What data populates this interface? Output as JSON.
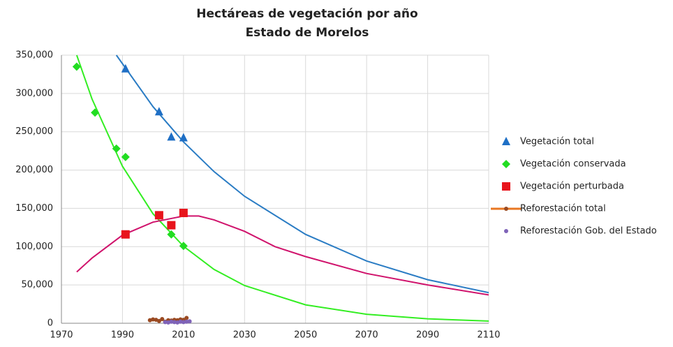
{
  "chart_data": {
    "type": "scatter",
    "title": "Hectáreas de vegetación por año",
    "subtitle": "Estado de Morelos",
    "xlim": [
      1970,
      2110
    ],
    "xticks": [
      1970,
      1990,
      2010,
      2030,
      2050,
      2070,
      2090,
      2110
    ],
    "ylim": [
      0,
      350000
    ],
    "yticks": [
      0,
      {
        "value": 50000,
        "label": "50,000"
      },
      {
        "value": 100000,
        "label": "100,000"
      },
      {
        "value": 150000,
        "label": "150,000"
      },
      {
        "value": 200000,
        "label": "200,000"
      },
      {
        "value": 250000,
        "label": "250,000"
      },
      {
        "value": 300000,
        "label": "300,000"
      },
      {
        "value": 350000,
        "label": "350,000"
      }
    ],
    "grid": true,
    "legend": "right",
    "series": [
      {
        "name": "Vegetación total",
        "color": "#1f6fc5",
        "marker": "triangle",
        "x": [
          1991,
          2002,
          2006,
          2010
        ],
        "values": [
          332000,
          276000,
          243000,
          242000
        ]
      },
      {
        "name": "Vegetación conservada",
        "color": "#22dd22",
        "marker": "diamond",
        "x": [
          1975,
          1981,
          1988,
          1991,
          2006,
          2010
        ],
        "values": [
          335000,
          275000,
          228000,
          217000,
          116000,
          101000
        ]
      },
      {
        "name": "Vegetación perturbada",
        "color": "#e8141c",
        "marker": "square",
        "x": [
          1991,
          2002,
          2006,
          2010
        ],
        "values": [
          116000,
          141000,
          128000,
          144000
        ]
      },
      {
        "name": "Reforestación total",
        "color": "#9a4a22",
        "marker": "circle",
        "line": true,
        "x": [
          1999,
          2000,
          2001,
          2002,
          2003,
          2004,
          2005,
          2006,
          2007,
          2008,
          2009,
          2010,
          2011
        ],
        "values": [
          4000,
          5000,
          4500,
          3000,
          5500,
          2000,
          4000,
          3500,
          4500,
          4000,
          5000,
          4500,
          7000
        ]
      },
      {
        "name": "Reforestación Gob. del Estado",
        "color": "#7f63b8",
        "marker": "circle",
        "x": [
          2004,
          2005,
          2006,
          2007,
          2008,
          2009,
          2010,
          2011,
          2012
        ],
        "values": [
          1500,
          1000,
          2000,
          1500,
          1000,
          2000,
          1500,
          2000,
          2500
        ]
      }
    ],
    "trendlines": [
      {
        "color": "#2a7cc4",
        "x": [
          1988,
          2000,
          2010,
          2020,
          2030,
          2050,
          2070,
          2090,
          2110
        ],
        "values": [
          350000,
          282800,
          236700,
          198000,
          165800,
          116000,
          81300,
          56900,
          40000
        ]
      },
      {
        "color": "#33ee22",
        "x": [
          1975,
          1980,
          1990,
          2000,
          2010,
          2020,
          2030,
          2050,
          2070,
          2090,
          2110
        ],
        "values": [
          350000,
          293000,
          205000,
          143000,
          100400,
          70300,
          49200,
          24100,
          11800,
          5800,
          2820
        ]
      },
      {
        "color": "#d0136c",
        "x": [
          1975,
          1980,
          1990,
          2000,
          2010,
          2015,
          2020,
          2030,
          2040,
          2050,
          2070,
          2090,
          2110
        ],
        "values": [
          67000,
          85000,
          115000,
          132000,
          140000,
          140000,
          135000,
          120000,
          100000,
          87000,
          65000,
          50000,
          37000
        ]
      }
    ]
  }
}
